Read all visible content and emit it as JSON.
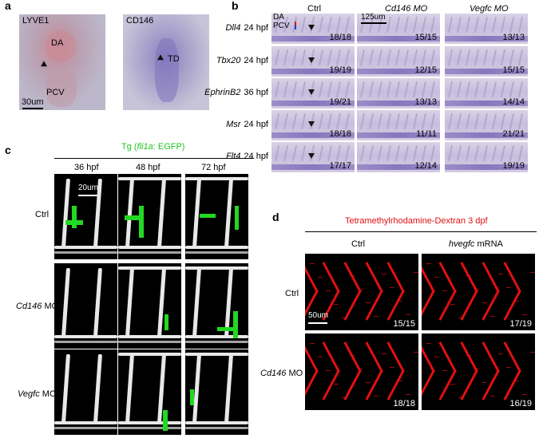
{
  "panel_a": {
    "label": "a",
    "left": {
      "title": "LYVE1",
      "da": "DA",
      "pcv": "PCV",
      "scale": "30um"
    },
    "right": {
      "title": "CD146",
      "td": "TD"
    }
  },
  "panel_b": {
    "label": "b",
    "columns": [
      "Ctrl",
      "Cd146 MO",
      "Vegfc MO"
    ],
    "column_italic": [
      false,
      true,
      true
    ],
    "scale": "125um",
    "da": "DA",
    "pcv": "PCV",
    "rows": [
      {
        "gene": "Dll4",
        "stage": "24 hpf",
        "counts": [
          "18/18",
          "15/15",
          "13/13"
        ]
      },
      {
        "gene": "Tbx20",
        "stage": "24 hpf",
        "counts": [
          "19/19",
          "12/15",
          "15/15"
        ]
      },
      {
        "gene": "EphrinB2",
        "stage": "36 hpf",
        "counts": [
          "19/21",
          "13/13",
          "14/14"
        ]
      },
      {
        "gene": "Msr",
        "stage": "24 hpf",
        "counts": [
          "18/18",
          "11/11",
          "21/21"
        ]
      },
      {
        "gene": "Flt4",
        "stage": "24 hpf",
        "counts": [
          "17/17",
          "12/14",
          "19/19"
        ]
      }
    ]
  },
  "panel_c": {
    "label": "c",
    "title_prefix": "Tg (",
    "title_gene": "fli1a",
    "title_suffix": ": EGFP)",
    "columns": [
      "36 hpf",
      "48 hpf",
      "72 hpf"
    ],
    "scale": "20um",
    "rows": [
      {
        "label": "Ctrl",
        "italic_part": ""
      },
      {
        "label": " MO",
        "italic_part": "Cd146"
      },
      {
        "label": " MO",
        "italic_part": "Vegfc"
      }
    ]
  },
  "panel_d": {
    "label": "d",
    "title": "Tetramethylrhodamine-Dextran 3 dpf",
    "columns": [
      {
        "italic": "",
        "text": "Ctrl"
      },
      {
        "italic": "hvegfc",
        "text": " mRNA"
      }
    ],
    "scale": "50um",
    "rows": [
      {
        "italic": "",
        "text": "Ctrl",
        "counts": [
          "15/15",
          "17/19"
        ]
      },
      {
        "italic": "Cd146",
        "text": " MO",
        "counts": [
          "18/18",
          "16/19"
        ]
      }
    ]
  },
  "colors": {
    "egfp": "#22d822",
    "dextran": "#e01010",
    "title_green": "#22c422",
    "title_red": "#e01010"
  }
}
